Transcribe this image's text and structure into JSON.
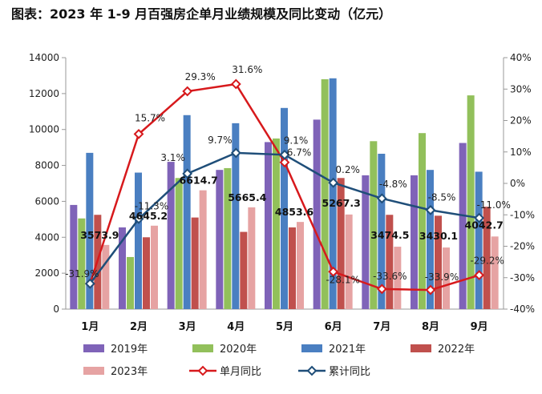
{
  "title": "图表：2023 年 1-9 月百强房企单月业绩规模及同比变动（亿元）",
  "chart_data": {
    "type": "bar",
    "categories": [
      "1月",
      "2月",
      "3月",
      "4月",
      "5月",
      "6月",
      "7月",
      "8月",
      "9月"
    ],
    "ylim": [
      0,
      14000
    ],
    "yticks": [
      "0",
      "2000",
      "4000",
      "6000",
      "8000",
      "10000",
      "12000",
      "14000"
    ],
    "y2lim": [
      -40,
      40
    ],
    "y2ticks": [
      "-40%",
      "-30%",
      "-20%",
      "-10%",
      "0%",
      "10%",
      "20%",
      "30%",
      "40%"
    ],
    "series": [
      {
        "name": "2019年",
        "color": "#7f63b8",
        "values": [
          5800,
          4550,
          8200,
          7750,
          9300,
          10550,
          7450,
          7450,
          9250
        ]
      },
      {
        "name": "2020年",
        "color": "#92c05b",
        "values": [
          5050,
          2900,
          7300,
          7850,
          9500,
          12800,
          9350,
          9800,
          11900
        ]
      },
      {
        "name": "2021年",
        "color": "#4a7fc1",
        "values": [
          8700,
          7600,
          10800,
          10350,
          11200,
          12850,
          8650,
          7750,
          7650
        ]
      },
      {
        "name": "2022年",
        "color": "#c0504d",
        "values": [
          5250,
          4000,
          5100,
          4300,
          4550,
          7300,
          5250,
          5200,
          5700
        ]
      },
      {
        "name": "2023年",
        "color": "#e6a3a3",
        "values": [
          3573.9,
          4645.2,
          6614.7,
          5665.4,
          4853.6,
          5267.3,
          3474.5,
          3430.1,
          4042.7
        ]
      }
    ],
    "value_labels_2023": [
      "3573.9",
      "4645.2",
      "6614.7",
      "5665.4",
      "4853.6",
      "5267.3",
      "3474.5",
      "3430.1",
      "4042.7"
    ],
    "lines": [
      {
        "name": "单月同比",
        "color": "#d7191c",
        "values": [
          -31.9,
          15.7,
          29.3,
          31.6,
          6.7,
          -28.1,
          -33.6,
          -33.9,
          -29.2
        ],
        "labels": [
          "-31.9%",
          "15.7%",
          "29.3%",
          "31.6%",
          "6.7%",
          "-28.1%",
          "-33.6%",
          "-33.9%",
          "-29.2%"
        ]
      },
      {
        "name": "累计同比",
        "color": "#1f4e79",
        "values": [
          -31.9,
          -11.3,
          3.1,
          9.7,
          9.1,
          0.2,
          -4.8,
          -8.5,
          -11.0
        ],
        "labels": [
          "-31.9%",
          "-11.3%",
          "3.1%",
          "9.7%",
          "9.1%",
          "0.2%",
          "-4.8%",
          "-8.5%",
          "-11.0%"
        ]
      }
    ],
    "legend_position": "bottom"
  }
}
